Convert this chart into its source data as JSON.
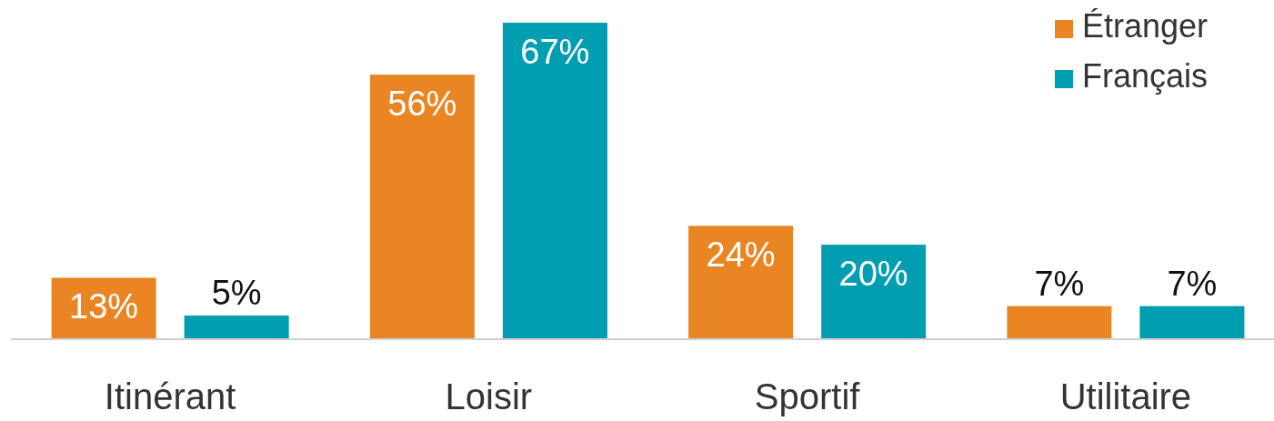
{
  "chart_data": {
    "type": "bar",
    "categories": [
      "Itinérant",
      "Loisir",
      "Sportif",
      "Utilitaire"
    ],
    "series": [
      {
        "name": "Étranger",
        "color": "#e98623",
        "values": [
          13,
          56,
          24,
          7
        ],
        "value_labels": [
          "13%",
          "56%",
          "24%",
          "7%"
        ]
      },
      {
        "name": "Français",
        "color": "#019db1",
        "values": [
          5,
          67,
          20,
          7
        ],
        "value_labels": [
          "5%",
          "67%",
          "20%",
          "7%"
        ]
      }
    ],
    "legend": "top right"
  }
}
